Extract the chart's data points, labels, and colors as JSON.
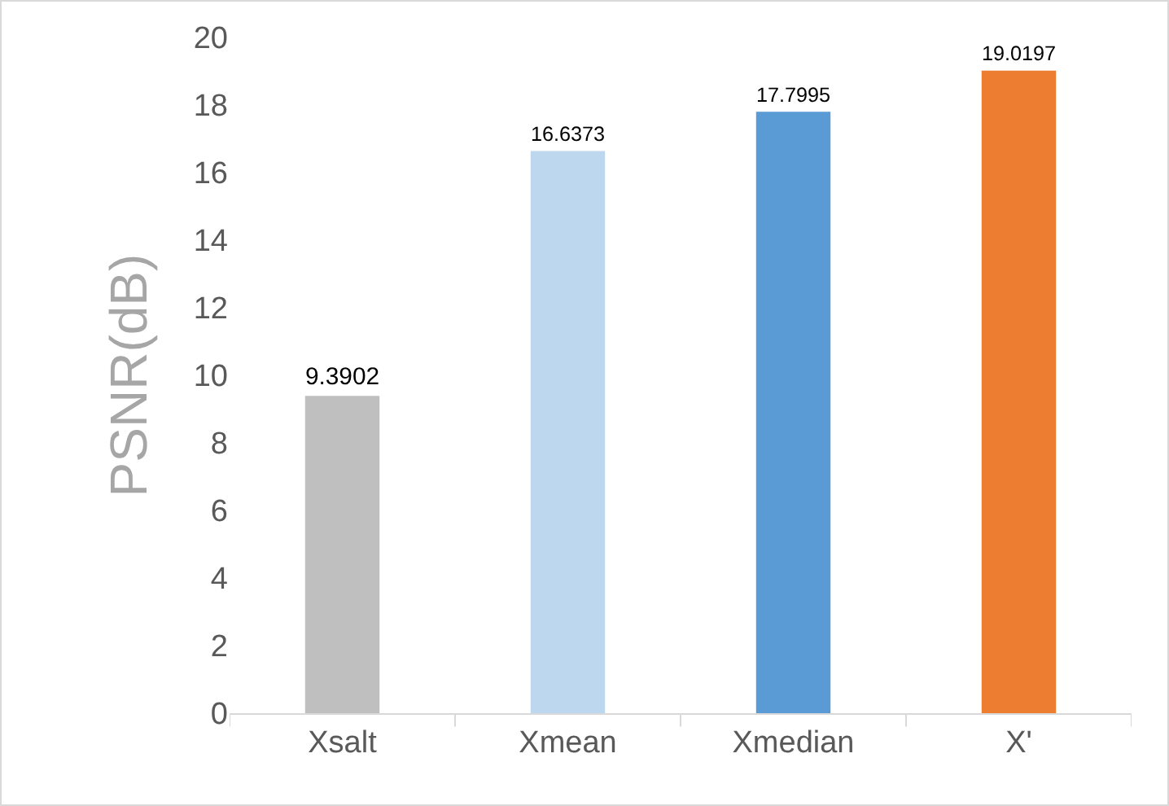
{
  "chart_data": {
    "type": "bar",
    "ylabel": "PSNR(dB)",
    "categories": [
      "Xsalt",
      "Xmean",
      "Xmedian",
      "X'"
    ],
    "values": [
      9.3902,
      16.6373,
      17.7995,
      19.0197
    ],
    "colors": [
      "#bfbfbf",
      "#bdd7ee",
      "#5b9bd5",
      "#ed7d31"
    ],
    "ylim": [
      0,
      20
    ],
    "yticks": [
      0,
      2,
      4,
      6,
      8,
      10,
      12,
      14,
      16,
      18,
      20
    ],
    "data_labels": true
  }
}
